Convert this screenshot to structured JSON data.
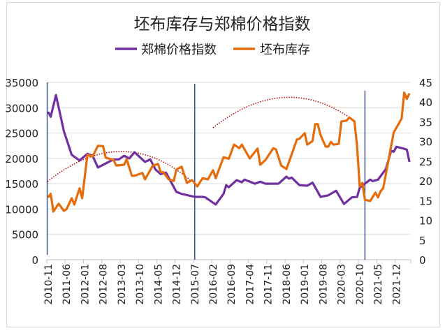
{
  "chart_data": {
    "type": "line",
    "title": "坯布库存与郑棉价格指数",
    "legend_position": "top",
    "grid": true,
    "x_start": "2010-11",
    "x_end": "2022-05",
    "x_tick_labels": [
      "2010-11",
      "2011-06",
      "2012-01",
      "2012-08",
      "2013-03",
      "2013-10",
      "2014-05",
      "2014-12",
      "2015-07",
      "2016-02",
      "2016-09",
      "2017-04",
      "2017-11",
      "2018-06",
      "2019-01",
      "2019-08",
      "2020-03",
      "2020-10",
      "2021-05",
      "2021-12"
    ],
    "y_left": {
      "range": [
        0,
        35000
      ],
      "ticks": [
        "0",
        "5000",
        "10000",
        "15000",
        "20000",
        "25000",
        "30000",
        "35000"
      ]
    },
    "y_right": {
      "range": [
        0,
        45
      ],
      "ticks": [
        "0",
        "5",
        "10",
        "15",
        "20",
        "25",
        "30",
        "35",
        "40",
        "45"
      ]
    },
    "series": [
      {
        "name": "郑棉价格指数",
        "axis": "left",
        "color": "#7030A0",
        "points": [
          [
            "2010-11",
            29200
          ],
          [
            "2010-12",
            28200
          ],
          [
            "2011-02",
            32500
          ],
          [
            "2011-05",
            25400
          ],
          [
            "2011-08",
            20700
          ],
          [
            "2011-11",
            19600
          ],
          [
            "2012-02",
            20900
          ],
          [
            "2012-04",
            20500
          ],
          [
            "2012-06",
            18200
          ],
          [
            "2012-12",
            19800
          ],
          [
            "2013-02",
            19800
          ],
          [
            "2013-04",
            20500
          ],
          [
            "2013-06",
            20000
          ],
          [
            "2013-08",
            21200
          ],
          [
            "2013-12",
            19300
          ],
          [
            "2014-02",
            19800
          ],
          [
            "2014-04",
            17800
          ],
          [
            "2014-06",
            16900
          ],
          [
            "2014-08",
            17200
          ],
          [
            "2014-12",
            13400
          ],
          [
            "2015-02",
            13000
          ],
          [
            "2015-07",
            12400
          ],
          [
            "2015-10",
            12400
          ],
          [
            "2015-11",
            12300
          ],
          [
            "2016-03",
            10900
          ],
          [
            "2016-06",
            13000
          ],
          [
            "2016-07",
            14700
          ],
          [
            "2016-08",
            14300
          ],
          [
            "2016-11",
            15700
          ],
          [
            "2017-01",
            15300
          ],
          [
            "2017-02",
            15800
          ],
          [
            "2017-06",
            15000
          ],
          [
            "2017-08",
            15400
          ],
          [
            "2017-10",
            15000
          ],
          [
            "2018-03",
            15000
          ],
          [
            "2018-06",
            16400
          ],
          [
            "2018-07",
            16000
          ],
          [
            "2018-08",
            16200
          ],
          [
            "2018-11",
            14700
          ],
          [
            "2019-02",
            14600
          ],
          [
            "2019-04",
            15200
          ],
          [
            "2019-06",
            13400
          ],
          [
            "2019-07",
            12400
          ],
          [
            "2019-10",
            12700
          ],
          [
            "2020-01",
            13600
          ],
          [
            "2020-04",
            11000
          ],
          [
            "2020-07",
            12300
          ],
          [
            "2020-09",
            12400
          ],
          [
            "2020-10",
            14200
          ],
          [
            "2021-02",
            15800
          ],
          [
            "2021-03",
            15500
          ],
          [
            "2021-05",
            15800
          ],
          [
            "2021-08",
            17900
          ],
          [
            "2021-10",
            21500
          ],
          [
            "2021-11",
            21300
          ],
          [
            "2021-12",
            22300
          ],
          [
            "2022-03",
            21900
          ],
          [
            "2022-04",
            21700
          ],
          [
            "2022-05",
            19300
          ]
        ]
      },
      {
        "name": "坯布库存",
        "axis": "right",
        "color": "#E46C0A",
        "points": [
          [
            "2010-11",
            15.8
          ],
          [
            "2010-12",
            16.7
          ],
          [
            "2011-01",
            12.2
          ],
          [
            "2011-03",
            14.2
          ],
          [
            "2011-05",
            12.4
          ],
          [
            "2011-06",
            12.8
          ],
          [
            "2011-08",
            15.6
          ],
          [
            "2011-09",
            14.0
          ],
          [
            "2011-11",
            18.1
          ],
          [
            "2011-12",
            15.6
          ],
          [
            "2012-02",
            26.6
          ],
          [
            "2012-04",
            26.2
          ],
          [
            "2012-06",
            28.9
          ],
          [
            "2012-08",
            28.8
          ],
          [
            "2012-09",
            25.9
          ],
          [
            "2012-12",
            25.3
          ],
          [
            "2013-01",
            23.9
          ],
          [
            "2013-04",
            24.1
          ],
          [
            "2013-05",
            25.5
          ],
          [
            "2013-07",
            21.3
          ],
          [
            "2013-08",
            21.3
          ],
          [
            "2013-11",
            22.0
          ],
          [
            "2013-12",
            20.4
          ],
          [
            "2014-03",
            23.9
          ],
          [
            "2014-05",
            24.3
          ],
          [
            "2014-06",
            22.2
          ],
          [
            "2014-07",
            22.2
          ],
          [
            "2014-09",
            20.4
          ],
          [
            "2014-11",
            20.0
          ],
          [
            "2014-12",
            22.9
          ],
          [
            "2015-02",
            23.6
          ],
          [
            "2015-04",
            19.5
          ],
          [
            "2015-06",
            20.2
          ],
          [
            "2015-08",
            18.6
          ],
          [
            "2015-10",
            20.7
          ],
          [
            "2015-12",
            20.4
          ],
          [
            "2016-02",
            22.7
          ],
          [
            "2016-03",
            20.7
          ],
          [
            "2016-06",
            26.0
          ],
          [
            "2016-08",
            25.6
          ],
          [
            "2016-10",
            29.2
          ],
          [
            "2016-12",
            28.3
          ],
          [
            "2017-01",
            29.2
          ],
          [
            "2017-04",
            25.7
          ],
          [
            "2017-07",
            28.2
          ],
          [
            "2017-08",
            24.1
          ],
          [
            "2017-10",
            25.3
          ],
          [
            "2018-01",
            28.3
          ],
          [
            "2018-02",
            28.0
          ],
          [
            "2018-04",
            23.9
          ],
          [
            "2018-06",
            23.0
          ],
          [
            "2018-10",
            30.5
          ],
          [
            "2018-11",
            30.7
          ],
          [
            "2019-01",
            32.1
          ],
          [
            "2019-02",
            29.2
          ],
          [
            "2019-04",
            30.1
          ],
          [
            "2019-05",
            34.4
          ],
          [
            "2019-06",
            34.4
          ],
          [
            "2019-07",
            31.7
          ],
          [
            "2019-09",
            28.7
          ],
          [
            "2019-10",
            28.7
          ],
          [
            "2019-11",
            29.9
          ],
          [
            "2019-12",
            29.2
          ],
          [
            "2020-02",
            29.4
          ],
          [
            "2020-03",
            35.1
          ],
          [
            "2020-05",
            35.3
          ],
          [
            "2020-06",
            36.1
          ],
          [
            "2020-08",
            35.1
          ],
          [
            "2020-09",
            28.7
          ],
          [
            "2020-10",
            18.6
          ],
          [
            "2020-11",
            19.5
          ],
          [
            "2020-12",
            15.2
          ],
          [
            "2021-02",
            14.9
          ],
          [
            "2021-04",
            17.0
          ],
          [
            "2021-05",
            15.8
          ],
          [
            "2021-06",
            17.4
          ],
          [
            "2021-07",
            18.2
          ],
          [
            "2021-11",
            32.3
          ],
          [
            "2022-02",
            35.8
          ],
          [
            "2022-03",
            42.4
          ],
          [
            "2022-04",
            40.8
          ],
          [
            "2022-05",
            42.2
          ]
        ]
      }
    ],
    "annotations": {
      "vertical_lines": [
        "2015-07",
        "2020-12"
      ],
      "vertical_line_color": "#1F3A7A",
      "trend_arc_color": "#C00000"
    }
  }
}
